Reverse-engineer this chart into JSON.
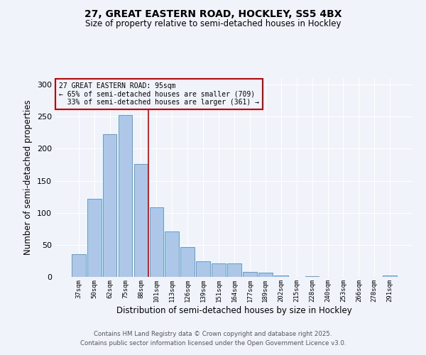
{
  "title1": "27, GREAT EASTERN ROAD, HOCKLEY, SS5 4BX",
  "title2": "Size of property relative to semi-detached houses in Hockley",
  "xlabel": "Distribution of semi-detached houses by size in Hockley",
  "ylabel": "Number of semi-detached properties",
  "categories": [
    "37sqm",
    "50sqm",
    "62sqm",
    "75sqm",
    "88sqm",
    "101sqm",
    "113sqm",
    "126sqm",
    "139sqm",
    "151sqm",
    "164sqm",
    "177sqm",
    "189sqm",
    "202sqm",
    "215sqm",
    "228sqm",
    "240sqm",
    "253sqm",
    "266sqm",
    "278sqm",
    "291sqm"
  ],
  "values": [
    35,
    122,
    222,
    252,
    176,
    109,
    71,
    46,
    24,
    21,
    21,
    8,
    7,
    2,
    0,
    1,
    0,
    0,
    0,
    0,
    2
  ],
  "bar_color": "#aec6e8",
  "bar_edge_color": "#5a9fd4",
  "subject_label": "27 GREAT EASTERN ROAD: 95sqm",
  "pct_smaller": 65,
  "n_smaller": 709,
  "pct_larger": 33,
  "n_larger": 361,
  "red_line_color": "#cc0000",
  "annotation_box_edge_color": "#cc0000",
  "ylim": [
    0,
    310
  ],
  "yticks": [
    0,
    50,
    100,
    150,
    200,
    250,
    300
  ],
  "footer1": "Contains HM Land Registry data © Crown copyright and database right 2025.",
  "footer2": "Contains public sector information licensed under the Open Government Licence v3.0.",
  "bg_color": "#f0f4fa",
  "grid_color": "#ffffff"
}
